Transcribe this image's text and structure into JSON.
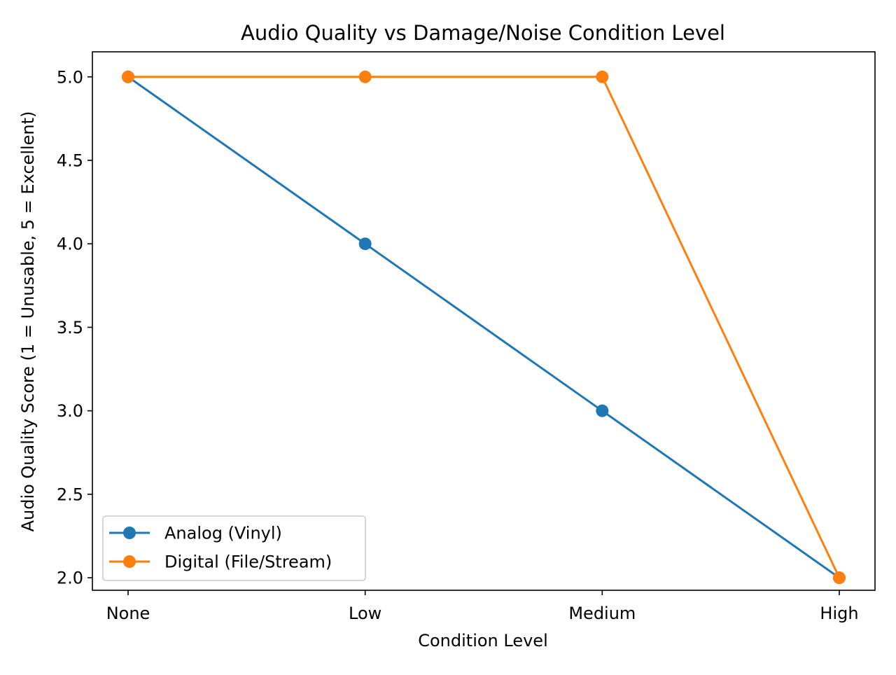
{
  "chart_data": {
    "type": "line",
    "title": "Audio Quality vs Damage/Noise Condition Level",
    "xlabel": "Condition Level",
    "ylabel": "Audio Quality Score (1 = Unusable, 5 = Excellent)",
    "categories": [
      "None",
      "Low",
      "Medium",
      "High"
    ],
    "ylim": [
      1.925,
      5.15
    ],
    "yticks": [
      "2.0",
      "2.5",
      "3.0",
      "3.5",
      "4.0",
      "4.5",
      "5.0"
    ],
    "grid": false,
    "legend_position": "lower-left",
    "series": [
      {
        "name": "Analog (Vinyl)",
        "color": "#1f77b4",
        "marker": "circle",
        "values": [
          5.0,
          4.0,
          3.0,
          2.0
        ]
      },
      {
        "name": "Digital (File/Stream)",
        "color": "#ff7f0e",
        "marker": "circle",
        "values": [
          5.0,
          5.0,
          5.0,
          2.0
        ]
      }
    ]
  }
}
